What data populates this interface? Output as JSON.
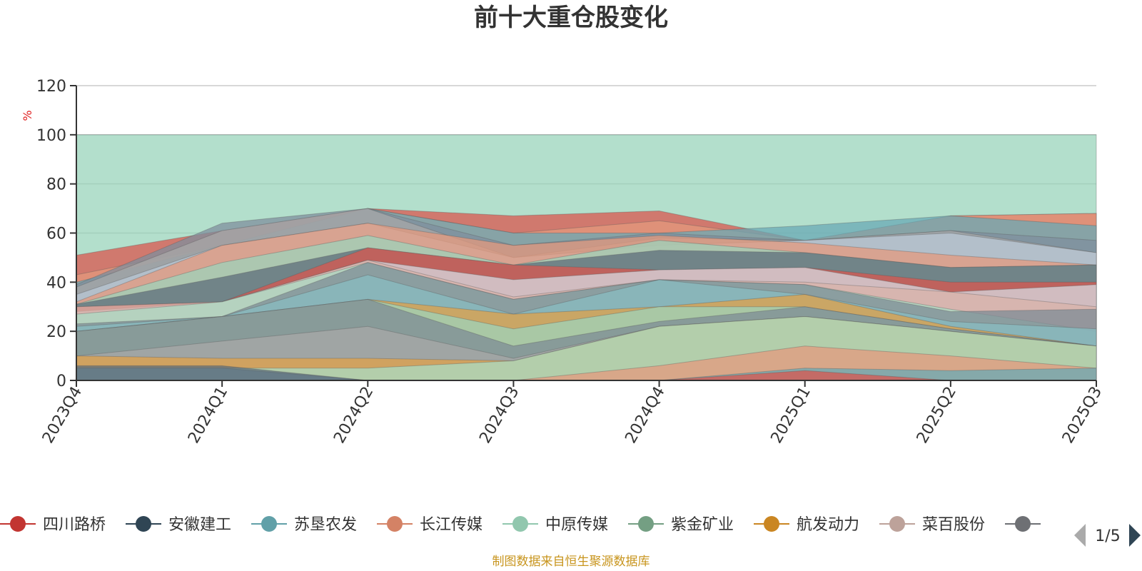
{
  "chart_data": {
    "type": "area",
    "title": "前十大重仓股变化",
    "ylabel": "%",
    "ylim": [
      0,
      120
    ],
    "yticks": [
      0,
      20,
      40,
      60,
      80,
      100,
      120
    ],
    "categories": [
      "2023Q4",
      "2024Q1",
      "2024Q2",
      "2024Q3",
      "2024Q4",
      "2025Q1",
      "2025Q2",
      "2025Q3"
    ],
    "grid": true,
    "legend_position": "bottom",
    "legend_page": "1/5",
    "layers": [
      {
        "color": "#93d1b7",
        "lower": [
          0,
          0,
          0,
          0,
          0,
          0,
          0,
          0
        ],
        "upper": [
          100,
          100,
          100,
          100,
          100,
          100,
          100,
          100
        ]
      },
      {
        "color": "#d9574f",
        "lower": [
          0,
          0,
          0,
          0,
          0,
          0,
          0,
          0
        ],
        "upper": [
          51,
          61,
          70,
          67,
          69,
          57,
          67,
          68
        ]
      },
      {
        "color": "#e49a7e",
        "lower": [
          0,
          0,
          0,
          0,
          0,
          0,
          0,
          0
        ],
        "upper": [
          43,
          55,
          70,
          60,
          65,
          57,
          67,
          68
        ]
      },
      {
        "color": "#6aa9b6",
        "lower": [
          0,
          0,
          0,
          0,
          0,
          0,
          0,
          0
        ],
        "upper": [
          40,
          55,
          70,
          60,
          60,
          63,
          67,
          63
        ]
      },
      {
        "color": "#7f8f9e",
        "lower": [
          0,
          0,
          0,
          0,
          0,
          0,
          0,
          0
        ],
        "upper": [
          39,
          64,
          70,
          55,
          60,
          57,
          61,
          57
        ]
      },
      {
        "color": "#a8a8a8",
        "lower": [
          0,
          0,
          0,
          0,
          0,
          0,
          0,
          0
        ],
        "upper": [
          38,
          61,
          70,
          50,
          58,
          57,
          61,
          52
        ]
      },
      {
        "color": "#b9c8d6",
        "lower": [
          0,
          0,
          0,
          0,
          0,
          0,
          0,
          0
        ],
        "upper": [
          35,
          55,
          64,
          50,
          55,
          57,
          60,
          52
        ]
      },
      {
        "color": "#e49a7e",
        "lower": [
          0,
          0,
          0,
          0,
          0,
          0,
          0,
          0
        ],
        "upper": [
          32,
          55,
          64,
          55,
          59,
          56,
          51,
          47
        ]
      },
      {
        "color": "#9ed3bb",
        "lower": [
          0,
          0,
          0,
          0,
          0,
          0,
          0,
          0
        ],
        "upper": [
          31,
          48,
          59,
          47,
          57,
          52,
          46,
          47
        ]
      },
      {
        "color": "#5e6d7b",
        "lower": [
          0,
          0,
          0,
          0,
          0,
          0,
          0,
          0
        ],
        "upper": [
          31,
          42,
          54,
          47,
          53,
          52,
          46,
          47
        ]
      },
      {
        "color": "#d9574f",
        "lower": [
          0,
          0,
          0,
          0,
          0,
          0,
          0,
          0
        ],
        "upper": [
          30,
          32,
          54,
          47,
          45,
          46,
          40,
          40
        ]
      },
      {
        "color": "#d7dbe2",
        "lower": [
          0,
          0,
          0,
          0,
          0,
          0,
          0,
          0
        ],
        "upper": [
          28,
          32,
          49,
          41,
          45,
          46,
          36,
          39
        ]
      },
      {
        "color": "#d8b3a9",
        "lower": [
          0,
          0,
          0,
          0,
          0,
          0,
          0,
          0
        ],
        "upper": [
          30,
          32,
          49,
          34,
          41,
          40,
          36,
          30
        ]
      },
      {
        "color": "#a9dcc4",
        "lower": [
          0,
          0,
          0,
          0,
          0,
          0,
          0,
          0
        ],
        "upper": [
          27,
          32,
          48,
          33,
          41,
          39,
          29,
          20
        ]
      },
      {
        "color": "#7e8c96",
        "lower": [
          0,
          0,
          0,
          0,
          0,
          0,
          0,
          0
        ],
        "upper": [
          23,
          26,
          48,
          33,
          41,
          39,
          28,
          29
        ]
      },
      {
        "color": "#88bcc2",
        "lower": [
          0,
          0,
          0,
          0,
          0,
          0,
          0,
          0
        ],
        "upper": [
          22,
          26,
          43,
          27,
          41,
          35,
          24,
          21
        ]
      },
      {
        "color": "#e0a14a",
        "lower": [
          0,
          0,
          0,
          0,
          0,
          0,
          0,
          0
        ],
        "upper": [
          20,
          26,
          33,
          27,
          30,
          35,
          22,
          14
        ]
      },
      {
        "color": "#9ed3bb",
        "lower": [
          0,
          0,
          0,
          0,
          0,
          0,
          0,
          0
        ],
        "upper": [
          20,
          26,
          33,
          21,
          30,
          30,
          21,
          14
        ]
      },
      {
        "color": "#7e8c96",
        "lower": [
          0,
          0,
          0,
          0,
          0,
          0,
          0,
          0
        ],
        "upper": [
          20,
          26,
          33,
          14,
          24,
          30,
          21,
          14
        ]
      },
      {
        "color": "#a8a8a8",
        "lower": [
          0,
          0,
          0,
          0,
          0,
          0,
          0,
          0
        ],
        "upper": [
          10,
          16,
          22,
          9,
          22,
          26,
          20,
          14
        ]
      },
      {
        "color": "#e0a14a",
        "lower": [
          0,
          0,
          0,
          0,
          0,
          0,
          0,
          0
        ],
        "upper": [
          10,
          9,
          9,
          8,
          22,
          26,
          20,
          14
        ]
      },
      {
        "color": "#a9dcc4",
        "lower": [
          0,
          0,
          0,
          0,
          0,
          0,
          0,
          0
        ],
        "upper": [
          5,
          5,
          5,
          8,
          22,
          26,
          20,
          14
        ]
      },
      {
        "color": "#e49a7e",
        "lower": [
          0,
          0,
          0,
          0,
          0,
          0,
          0,
          0
        ],
        "upper": [
          5,
          5,
          0,
          0,
          6,
          14,
          10,
          5
        ]
      },
      {
        "color": "#6aa9b6",
        "lower": [
          0,
          0,
          0,
          0,
          0,
          0,
          0,
          0
        ],
        "upper": [
          5,
          5,
          0,
          0,
          0,
          5,
          4,
          5
        ]
      },
      {
        "color": "#d9574f",
        "lower": [
          0,
          0,
          0,
          0,
          0,
          0,
          0,
          0
        ],
        "upper": [
          0,
          0,
          0,
          0,
          0,
          4,
          0,
          0
        ]
      },
      {
        "color": "#5e6d7b",
        "lower": [
          0,
          0,
          0,
          0,
          0,
          0,
          0,
          0
        ],
        "upper": [
          6,
          6,
          0,
          0,
          0,
          0,
          0,
          0
        ]
      }
    ],
    "legend": [
      {
        "name": "四川路桥",
        "color": "#c23531"
      },
      {
        "name": "安徽建工",
        "color": "#2f4554"
      },
      {
        "name": "苏垦农发",
        "color": "#61a0a8"
      },
      {
        "name": "长江传媒",
        "color": "#d48265"
      },
      {
        "name": "中原传媒",
        "color": "#91c7ae"
      },
      {
        "name": "紫金矿业",
        "color": "#749f83"
      },
      {
        "name": "航发动力",
        "color": "#ca8622"
      },
      {
        "name": "菜百股份",
        "color": "#bda29a"
      },
      {
        "name": "",
        "color": "#6e7074"
      }
    ]
  },
  "footer": {
    "source": "制图数据来自恒生聚源数据库"
  },
  "colors": {
    "axis": "#333333",
    "grid": "#cccccc",
    "unit": "#e02020",
    "source": "#c8951e",
    "pager_active": "#2f4554",
    "pager_inactive": "#aaaaaa"
  }
}
